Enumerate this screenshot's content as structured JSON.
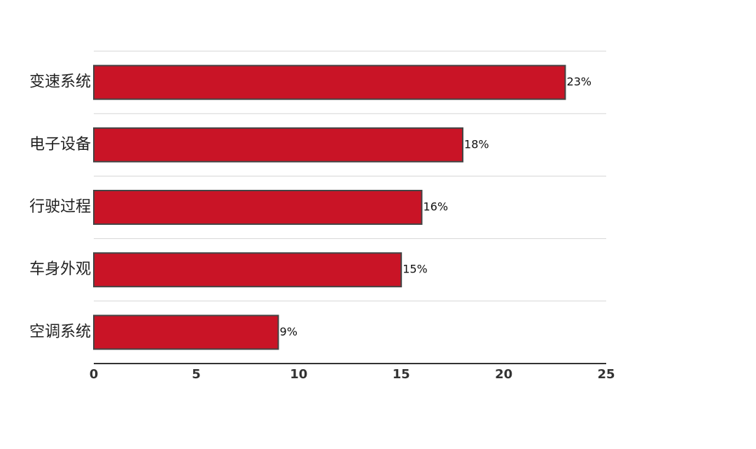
{
  "chart_data": {
    "type": "barh",
    "categories": [
      "变速系统",
      "电子设备",
      "行驶过程",
      "车身外观",
      "空调系统"
    ],
    "values": [
      23,
      18,
      16,
      15,
      9
    ],
    "value_labels": [
      "23%",
      "18%",
      "16%",
      "15%",
      "9%"
    ],
    "color": "#c91426",
    "xlim": [
      0,
      25
    ],
    "xticks": [
      0,
      5,
      10,
      15,
      20,
      25
    ]
  }
}
